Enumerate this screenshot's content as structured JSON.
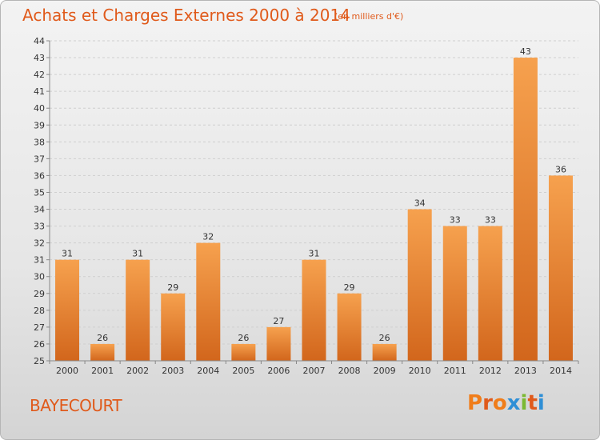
{
  "header": {
    "title": "Achats et Charges Externes 2000 à 2014",
    "subtitle": "(en milliers d'€)"
  },
  "footer": {
    "commune": "BAYECOURT",
    "logo": "Proxiti"
  },
  "colors": {
    "title": "#e05a1b",
    "bar_top": "#f6a14e",
    "bar_bottom": "#d2661c",
    "logo_letters": [
      "#f07d1a",
      "#e05a1b",
      "#f07d1a",
      "#2f8fd6",
      "#7bb932",
      "#e05a1b",
      "#2f8fd6"
    ]
  },
  "chart_data": {
    "type": "bar",
    "title": "Achats et Charges Externes 2000 à 2014",
    "subtitle": "(en milliers d'€)",
    "categories": [
      "2000",
      "2001",
      "2002",
      "2003",
      "2004",
      "2005",
      "2006",
      "2007",
      "2008",
      "2009",
      "2010",
      "2011",
      "2012",
      "2013",
      "2014"
    ],
    "values": [
      31,
      26,
      31,
      29,
      32,
      26,
      27,
      31,
      29,
      26,
      34,
      33,
      33,
      43,
      36
    ],
    "ylim": [
      25,
      44
    ],
    "yticks": [
      25,
      26,
      27,
      28,
      29,
      30,
      31,
      32,
      33,
      34,
      35,
      36,
      37,
      38,
      39,
      40,
      41,
      42,
      43,
      44
    ],
    "grid": true,
    "xlabel": "",
    "ylabel": ""
  }
}
